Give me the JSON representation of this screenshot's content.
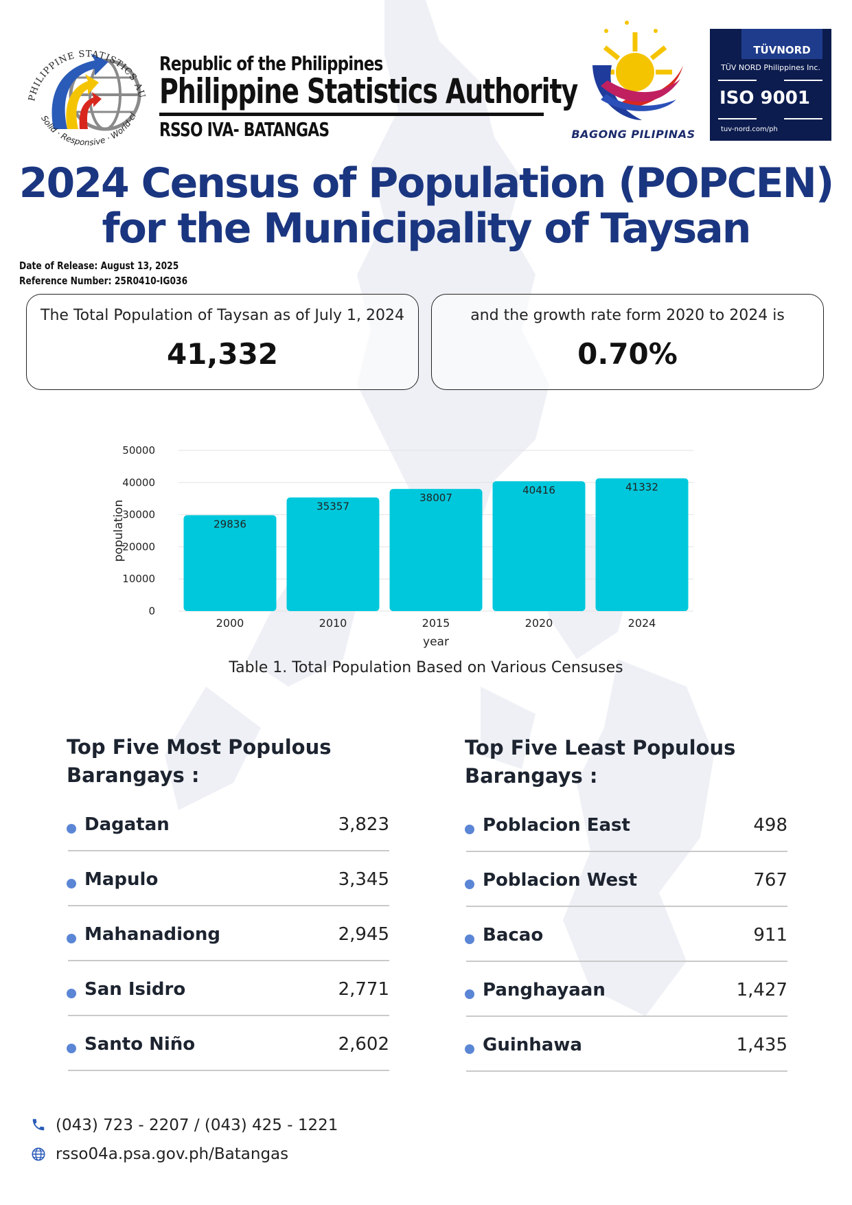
{
  "header": {
    "republic": "Republic of the Philippines",
    "agency": "Philippine Statistics Authority",
    "office": "RSSO IVA- BATANGAS",
    "psa_logo": {
      "ring_text_top": "PHILIPPINE STATISTICS AUTHORITY",
      "ring_text_bottom": "Solid · Responsive · World-class",
      "icon": "psa-globe-arrows-logo"
    },
    "bagong_pilipinas": "BAGONG PILIPINAS",
    "iso_badge": {
      "brand": "TÜVNORD",
      "company": "TÜV NORD Philippines Inc.",
      "standard": "ISO 9001",
      "url": "tuv-nord.com/ph"
    }
  },
  "title": {
    "line1": "2024 Census of Population (POPCEN)",
    "line2": "for the Municipality of Taysan"
  },
  "meta": {
    "release": "Date of Release:  August 13, 2025",
    "reference": "Reference Number: 25R0410-IG036"
  },
  "stats": {
    "population_label": "The Total Population of Taysan as of July 1, 2024",
    "population_value": "41,332",
    "growth_label": "and the growth rate form 2020 to 2024 is",
    "growth_value": "0.70%"
  },
  "chart_data": {
    "type": "bar",
    "categories": [
      "2000",
      "2010",
      "2015",
      "2020",
      "2024"
    ],
    "values": [
      29836,
      35357,
      38007,
      40416,
      41332
    ],
    "xlabel": "year",
    "ylabel": "population",
    "ylim": [
      0,
      50000
    ],
    "yticks": [
      0,
      10000,
      20000,
      30000,
      40000,
      50000
    ],
    "bar_color": "#00c8dc",
    "grid": true,
    "caption": "Table 1. Total Population Based on Various Censuses"
  },
  "most_populous": {
    "heading_line1": "Top Five Most Populous",
    "heading_line2": "Barangays :",
    "items": [
      {
        "name": "Dagatan",
        "value": "3,823"
      },
      {
        "name": "Mapulo",
        "value": "3,345"
      },
      {
        "name": "Mahanadiong",
        "value": "2,945"
      },
      {
        "name": "San Isidro",
        "value": "2,771"
      },
      {
        "name": "Santo Niño",
        "value": "2,602"
      }
    ]
  },
  "least_populous": {
    "heading_line1": "Top Five Least Populous",
    "heading_line2": "Barangays :",
    "items": [
      {
        "name": "Poblacion East",
        "value": "498"
      },
      {
        "name": "Poblacion West",
        "value": "767"
      },
      {
        "name": "Bacao",
        "value": "911"
      },
      {
        "name": "Panghayaan",
        "value": "1,427"
      },
      {
        "name": "Guinhawa",
        "value": "1,435"
      }
    ]
  },
  "footer": {
    "phone": "(043) 723 - 2207 / (043) 425 - 1221",
    "website": "rsso04a.psa.gov.ph/Batangas",
    "phone_icon": "phone-icon",
    "web_icon": "globe-icon"
  },
  "colors": {
    "title": "#1b3680",
    "bullet": "#5b86d6",
    "bar": "#00c8dc"
  }
}
